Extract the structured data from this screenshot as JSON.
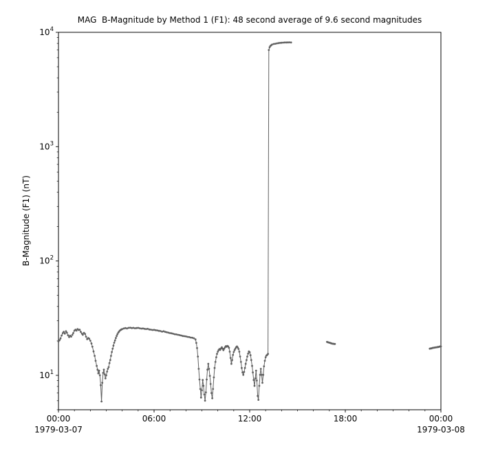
{
  "chart_data": {
    "type": "line",
    "title": "MAG  B-Magnitude by Method 1 (F1): 48 second average of 9.6 second magnitudes",
    "ylabel": "B-Magnitude (F1) (nT)",
    "xlabel": "",
    "y_scale": "log",
    "grid": false,
    "legend": null,
    "xlim": [
      0,
      24
    ],
    "ylim": [
      5,
      10000
    ],
    "line_color": "#606060",
    "axis_color": "#000000",
    "x_ticks": [
      {
        "hour": 0,
        "label": "00:00"
      },
      {
        "hour": 6,
        "label": "06:00"
      },
      {
        "hour": 12,
        "label": "12:00"
      },
      {
        "hour": 18,
        "label": "18:00"
      },
      {
        "hour": 24,
        "label": "00:00"
      }
    ],
    "x_date_labels": [
      {
        "hour": 0,
        "label": "1979-03-07"
      },
      {
        "hour": 24,
        "label": "1979-03-08"
      }
    ],
    "y_tick_exponents": [
      1,
      2,
      3,
      4
    ],
    "series": [
      {
        "name": "B-Magnitude (F1)",
        "units": "nT",
        "x_units": "hours",
        "segments": [
          [
            [
              0.0,
              19.8
            ],
            [
              0.07,
              20.3
            ],
            [
              0.13,
              21.0
            ],
            [
              0.2,
              22.3
            ],
            [
              0.27,
              23.4
            ],
            [
              0.33,
              24.0
            ],
            [
              0.4,
              23.2
            ],
            [
              0.47,
              24.3
            ],
            [
              0.53,
              23.6
            ],
            [
              0.6,
              22.4
            ],
            [
              0.67,
              21.6
            ],
            [
              0.73,
              22.2
            ],
            [
              0.8,
              21.8
            ],
            [
              0.87,
              22.6
            ],
            [
              0.93,
              23.4
            ],
            [
              1.0,
              24.6
            ],
            [
              1.07,
              25.1
            ],
            [
              1.13,
              24.6
            ],
            [
              1.2,
              25.4
            ],
            [
              1.27,
              24.9
            ],
            [
              1.33,
              25.1
            ],
            [
              1.4,
              24.0
            ],
            [
              1.47,
              23.2
            ],
            [
              1.53,
              22.6
            ],
            [
              1.6,
              23.5
            ],
            [
              1.67,
              23.0
            ],
            [
              1.73,
              21.8
            ],
            [
              1.8,
              20.7
            ],
            [
              1.87,
              21.2
            ],
            [
              1.93,
              20.9
            ],
            [
              2.0,
              20.1
            ],
            [
              2.07,
              19.0
            ],
            [
              2.13,
              17.8
            ],
            [
              2.2,
              16.2
            ],
            [
              2.27,
              14.8
            ],
            [
              2.33,
              13.4
            ],
            [
              2.4,
              12.1
            ],
            [
              2.45,
              11.2
            ],
            [
              2.5,
              10.4
            ],
            [
              2.55,
              11.0
            ],
            [
              2.6,
              10.0
            ],
            [
              2.65,
              8.2
            ],
            [
              2.7,
              5.9
            ],
            [
              2.75,
              8.6
            ],
            [
              2.8,
              10.5
            ],
            [
              2.85,
              11.2
            ],
            [
              2.9,
              10.2
            ],
            [
              2.95,
              9.4
            ],
            [
              3.0,
              10.0
            ],
            [
              3.05,
              10.8
            ],
            [
              3.1,
              11.4
            ],
            [
              3.15,
              11.8
            ],
            [
              3.2,
              12.8
            ],
            [
              3.25,
              13.6
            ],
            [
              3.3,
              14.8
            ],
            [
              3.35,
              16.0
            ],
            [
              3.4,
              17.1
            ],
            [
              3.45,
              18.2
            ],
            [
              3.5,
              19.3
            ],
            [
              3.55,
              20.2
            ],
            [
              3.6,
              21.2
            ],
            [
              3.65,
              22.1
            ],
            [
              3.7,
              22.9
            ],
            [
              3.75,
              23.6
            ],
            [
              3.8,
              24.1
            ],
            [
              3.85,
              24.6
            ],
            [
              3.9,
              24.9
            ],
            [
              3.95,
              25.2
            ],
            [
              4.0,
              25.4
            ],
            [
              4.1,
              25.7
            ],
            [
              4.2,
              25.9
            ],
            [
              4.3,
              25.7
            ],
            [
              4.4,
              26.0
            ],
            [
              4.5,
              26.1
            ],
            [
              4.6,
              25.9
            ],
            [
              4.7,
              26.0
            ],
            [
              4.8,
              25.8
            ],
            [
              4.9,
              25.9
            ],
            [
              5.0,
              26.0
            ],
            [
              5.1,
              25.8
            ],
            [
              5.2,
              25.6
            ],
            [
              5.3,
              25.7
            ],
            [
              5.4,
              25.5
            ],
            [
              5.5,
              25.4
            ],
            [
              5.6,
              25.5
            ],
            [
              5.7,
              25.2
            ],
            [
              5.8,
              25.1
            ],
            [
              5.9,
              24.9
            ],
            [
              6.0,
              25.0
            ],
            [
              6.1,
              24.8
            ],
            [
              6.2,
              24.7
            ],
            [
              6.3,
              24.5
            ],
            [
              6.4,
              24.4
            ],
            [
              6.5,
              24.1
            ],
            [
              6.6,
              24.3
            ],
            [
              6.7,
              24.0
            ],
            [
              6.8,
              23.8
            ],
            [
              6.9,
              23.6
            ],
            [
              7.0,
              23.4
            ],
            [
              7.1,
              23.3
            ],
            [
              7.2,
              23.1
            ],
            [
              7.3,
              22.9
            ],
            [
              7.4,
              22.8
            ],
            [
              7.5,
              22.6
            ],
            [
              7.6,
              22.5
            ],
            [
              7.7,
              22.3
            ],
            [
              7.8,
              22.1
            ],
            [
              7.9,
              22.0
            ],
            [
              8.0,
              21.9
            ],
            [
              8.1,
              21.7
            ],
            [
              8.2,
              21.6
            ],
            [
              8.3,
              21.4
            ],
            [
              8.4,
              21.3
            ],
            [
              8.5,
              21.1
            ],
            [
              8.6,
              20.6
            ],
            [
              8.65,
              19.2
            ],
            [
              8.7,
              17.3
            ],
            [
              8.75,
              14.6
            ],
            [
              8.8,
              11.4
            ],
            [
              8.85,
              9.2
            ],
            [
              8.9,
              7.6
            ],
            [
              8.95,
              6.4
            ],
            [
              9.0,
              7.4
            ],
            [
              9.05,
              9.1
            ],
            [
              9.1,
              8.1
            ],
            [
              9.15,
              6.8
            ],
            [
              9.2,
              6.0
            ],
            [
              9.25,
              7.1
            ],
            [
              9.3,
              9.2
            ],
            [
              9.35,
              11.2
            ],
            [
              9.4,
              12.6
            ],
            [
              9.45,
              11.4
            ],
            [
              9.5,
              9.9
            ],
            [
              9.55,
              8.4
            ],
            [
              9.6,
              7.0
            ],
            [
              9.65,
              6.3
            ],
            [
              9.7,
              7.6
            ],
            [
              9.75,
              9.6
            ],
            [
              9.8,
              11.6
            ],
            [
              9.85,
              13.1
            ],
            [
              9.9,
              14.4
            ],
            [
              9.95,
              15.4
            ],
            [
              10.0,
              16.1
            ],
            [
              10.05,
              16.6
            ],
            [
              10.1,
              17.0
            ],
            [
              10.15,
              16.7
            ],
            [
              10.2,
              17.2
            ],
            [
              10.25,
              17.6
            ],
            [
              10.3,
              17.1
            ],
            [
              10.35,
              16.6
            ],
            [
              10.4,
              17.1
            ],
            [
              10.45,
              17.6
            ],
            [
              10.5,
              18.0
            ],
            [
              10.55,
              17.8
            ],
            [
              10.6,
              18.1
            ],
            [
              10.65,
              17.9
            ],
            [
              10.7,
              17.4
            ],
            [
              10.75,
              16.1
            ],
            [
              10.8,
              14.2
            ],
            [
              10.85,
              12.6
            ],
            [
              10.9,
              13.6
            ],
            [
              10.95,
              15.1
            ],
            [
              11.0,
              16.0
            ],
            [
              11.05,
              16.6
            ],
            [
              11.1,
              17.1
            ],
            [
              11.15,
              17.6
            ],
            [
              11.2,
              17.9
            ],
            [
              11.25,
              17.5
            ],
            [
              11.3,
              17.0
            ],
            [
              11.35,
              16.1
            ],
            [
              11.4,
              14.6
            ],
            [
              11.45,
              13.1
            ],
            [
              11.5,
              11.6
            ],
            [
              11.55,
              10.6
            ],
            [
              11.6,
              10.1
            ],
            [
              11.65,
              10.7
            ],
            [
              11.7,
              11.6
            ],
            [
              11.75,
              12.6
            ],
            [
              11.8,
              13.6
            ],
            [
              11.85,
              14.6
            ],
            [
              11.9,
              15.5
            ],
            [
              11.95,
              16.2
            ],
            [
              12.0,
              15.9
            ],
            [
              12.05,
              15.0
            ],
            [
              12.1,
              13.6
            ],
            [
              12.15,
              12.1
            ],
            [
              12.2,
              10.6
            ],
            [
              12.25,
              9.1
            ],
            [
              12.3,
              8.1
            ],
            [
              12.35,
              9.4
            ],
            [
              12.4,
              11.0
            ],
            [
              12.45,
              9.0
            ],
            [
              12.5,
              6.6
            ],
            [
              12.55,
              6.1
            ],
            [
              12.6,
              8.1
            ],
            [
              12.65,
              10.1
            ],
            [
              12.7,
              11.4
            ],
            [
              12.75,
              10.1
            ],
            [
              12.8,
              8.6
            ],
            [
              12.85,
              10.1
            ],
            [
              12.9,
              12.0
            ],
            [
              12.95,
              13.4
            ],
            [
              13.0,
              14.4
            ],
            [
              13.05,
              14.9
            ],
            [
              13.1,
              15.1
            ],
            [
              13.15,
              15.4
            ],
            [
              13.2,
              7000
            ],
            [
              13.25,
              7400
            ],
            [
              13.3,
              7600
            ],
            [
              13.35,
              7700
            ],
            [
              13.4,
              7800
            ],
            [
              13.5,
              7900
            ],
            [
              13.6,
              7950
            ],
            [
              13.7,
              8000
            ],
            [
              13.8,
              8050
            ],
            [
              13.9,
              8080
            ],
            [
              14.0,
              8100
            ],
            [
              14.1,
              8120
            ],
            [
              14.2,
              8150
            ],
            [
              14.3,
              8150
            ],
            [
              14.4,
              8160
            ],
            [
              14.5,
              8170
            ],
            [
              14.6,
              8150
            ]
          ],
          [
            [
              16.85,
              19.6
            ],
            [
              16.9,
              19.5
            ],
            [
              16.95,
              19.4
            ],
            [
              17.0,
              19.3
            ],
            [
              17.05,
              19.2
            ],
            [
              17.1,
              19.1
            ],
            [
              17.15,
              19.0
            ],
            [
              17.2,
              18.9
            ],
            [
              17.25,
              18.9
            ],
            [
              17.3,
              18.8
            ],
            [
              17.35,
              18.8
            ]
          ],
          [
            [
              23.3,
              17.1
            ],
            [
              23.35,
              17.2
            ],
            [
              23.4,
              17.2
            ],
            [
              23.45,
              17.3
            ],
            [
              23.5,
              17.4
            ],
            [
              23.55,
              17.4
            ],
            [
              23.6,
              17.5
            ],
            [
              23.65,
              17.5
            ],
            [
              23.7,
              17.6
            ],
            [
              23.75,
              17.6
            ],
            [
              23.8,
              17.7
            ],
            [
              23.85,
              17.7
            ],
            [
              23.9,
              17.8
            ],
            [
              23.95,
              17.9
            ],
            [
              24.0,
              17.9
            ]
          ]
        ]
      }
    ]
  }
}
